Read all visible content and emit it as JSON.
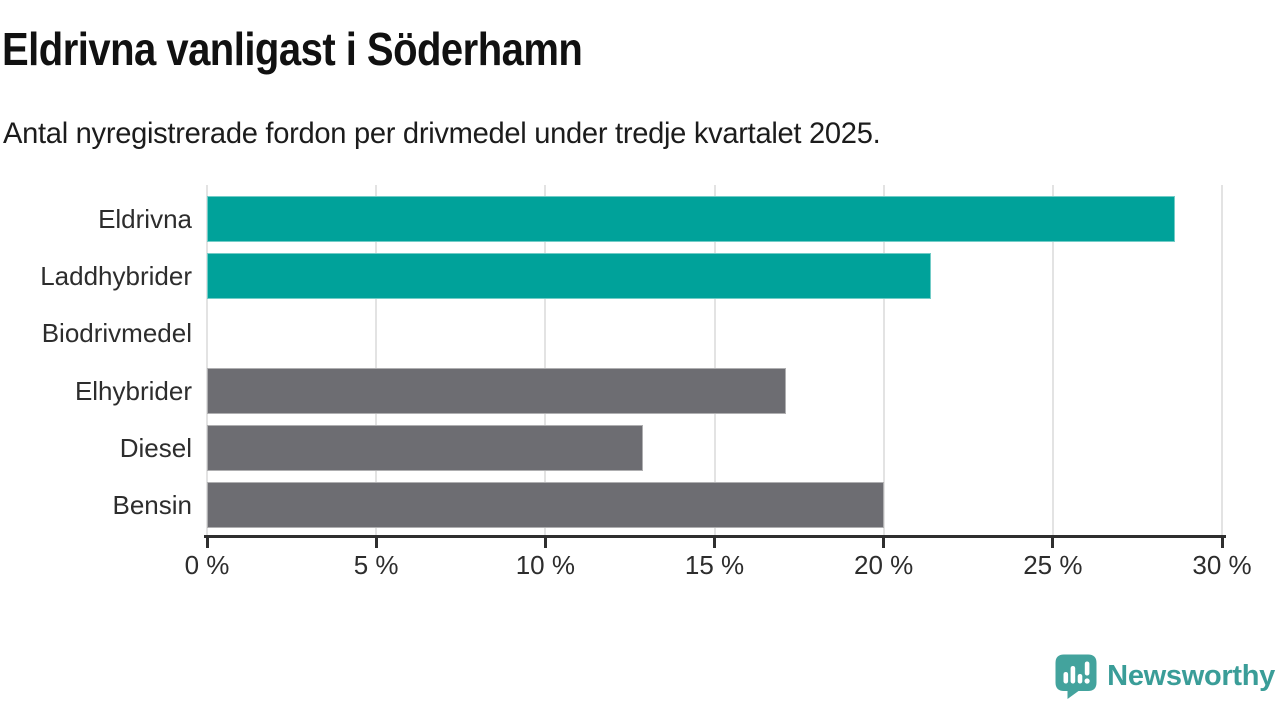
{
  "header": {
    "title": "Eldrivna vanligast i Söderhamn",
    "subtitle": "Antal nyregistrerade fordon per drivmedel under tredje kvartalet 2025."
  },
  "chart_data": {
    "type": "bar",
    "orientation": "horizontal",
    "title": "Eldrivna vanligast i Söderhamn",
    "subtitle": "Antal nyregistrerade fordon per drivmedel under tredje kvartalet 2025.",
    "categories": [
      "Eldrivna",
      "Laddhybrider",
      "Biodrivmedel",
      "Elhybrider",
      "Diesel",
      "Bensin"
    ],
    "values": [
      28.6,
      21.4,
      0,
      17.1,
      12.9,
      20
    ],
    "unit": "%",
    "xlabel": "",
    "ylabel": "",
    "xlim": [
      0,
      30
    ],
    "xticks": [
      0,
      5,
      10,
      15,
      20,
      25,
      30
    ],
    "xtick_labels": [
      "0 %",
      "5 %",
      "10 %",
      "15 %",
      "20 %",
      "25 %",
      "30 %"
    ],
    "grid": true,
    "legend": "none",
    "bar_colors": [
      "#00a29a",
      "#00a29a",
      "#6d6d72",
      "#6d6d72",
      "#6d6d72",
      "#6d6d72"
    ],
    "highlight_color": "#00a29a",
    "default_color": "#6d6d72",
    "grid_color": "#e3e3e3",
    "axis_color": "#2f2f2f",
    "label_color": "#2d2d2d"
  },
  "footer": {
    "brand": "Newsworthy",
    "brand_color": "#3a9d98",
    "logo_icon": "newsworthy-speech-bubble-bar-chart-icon",
    "logo_bg_color": "#43a39d",
    "logo_glyph_color": "#ffffff"
  }
}
